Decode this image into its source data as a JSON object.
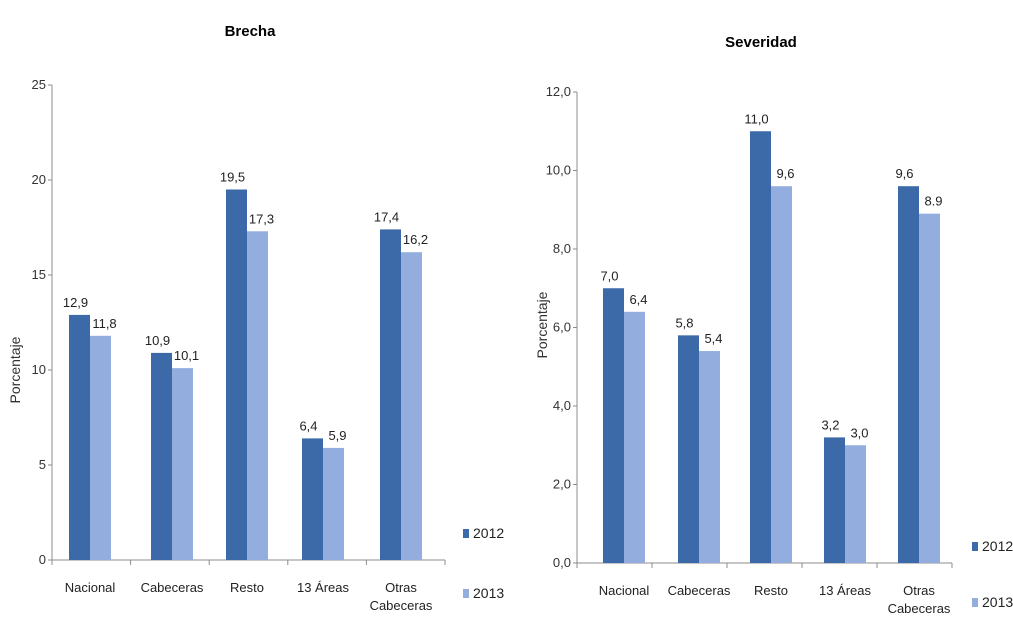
{
  "colors": {
    "s2012": "#3c69a8",
    "s2013": "#93aede",
    "axis": "#8c8c8c"
  },
  "chart_data": [
    {
      "type": "bar",
      "title": "Brecha",
      "ylabel": "Porcentaje",
      "ylim": [
        0,
        25
      ],
      "yticks": [
        "0",
        "5",
        "10",
        "15",
        "20",
        "25"
      ],
      "categories": [
        "Nacional",
        "Cabeceras",
        "Resto",
        "13 Áreas",
        "Otras Cabeceras"
      ],
      "series": [
        {
          "name": "2012",
          "values": [
            12.9,
            10.9,
            19.5,
            6.4,
            17.4
          ],
          "labels": [
            "12,9",
            "10,9",
            "19,5",
            "6,4",
            "17,4"
          ]
        },
        {
          "name": "2013",
          "values": [
            11.8,
            10.1,
            17.3,
            5.9,
            16.2
          ],
          "labels": [
            "11,8",
            "10,1",
            "17,3",
            "5,9",
            "16,2"
          ]
        }
      ],
      "legend": "right",
      "grid": false
    },
    {
      "type": "bar",
      "title": "Severidad",
      "ylabel": "Porcentaje",
      "ylim": [
        0,
        12
      ],
      "yticks": [
        "0,0",
        "2,0",
        "4,0",
        "6,0",
        "8,0",
        "10,0",
        "12,0"
      ],
      "categories": [
        "Nacional",
        "Cabeceras",
        "Resto",
        "13 Áreas",
        "Otras Cabeceras"
      ],
      "series": [
        {
          "name": "2012",
          "values": [
            7.0,
            5.8,
            11.0,
            3.2,
            9.6
          ],
          "labels": [
            "7,0",
            "5,8",
            "11,0",
            "3,2",
            "9,6"
          ]
        },
        {
          "name": "2013",
          "values": [
            6.4,
            5.4,
            9.6,
            3.0,
            8.9
          ],
          "labels": [
            "6,4",
            "5,4",
            "9,6",
            "3,0",
            "8.9"
          ]
        }
      ],
      "legend": "right",
      "grid": false
    }
  ]
}
